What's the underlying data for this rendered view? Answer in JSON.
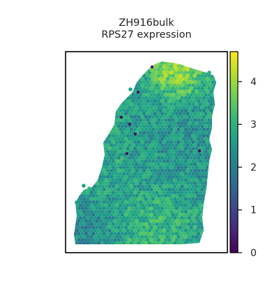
{
  "chart_data": {
    "type": "scatter",
    "title_lines": [
      "ZH916bulk",
      "RPS27 expression"
    ],
    "xlabel": "",
    "ylabel": "",
    "colorbar": {
      "colormap": "viridis",
      "range": [
        0,
        4.7
      ],
      "ticks": [
        0,
        1,
        2,
        3,
        4
      ],
      "tick_labels": [
        "0",
        "1",
        "2",
        "3",
        "4"
      ]
    },
    "grid": false,
    "legend": "none",
    "value_distribution": {
      "background_mean": 2.6,
      "regions": [
        {
          "area": "top-right edge",
          "typical_value": 4.5
        },
        {
          "area": "left lobe",
          "typical_value": 2.9
        },
        {
          "area": "bottom-center",
          "typical_value": 3.3
        },
        {
          "area": "bottom-left corner",
          "typical_value": 2.0
        },
        {
          "area": "center",
          "typical_value": 2.3
        }
      ],
      "outlier_spots_value": 0.2
    }
  },
  "colors": {
    "viridis": [
      "#440154",
      "#482878",
      "#3e4989",
      "#31688e",
      "#26828e",
      "#1f9e89",
      "#35b779",
      "#6ece58",
      "#b5de2b",
      "#fde725"
    ],
    "axes_frame": "#000000",
    "text": "#222222"
  }
}
